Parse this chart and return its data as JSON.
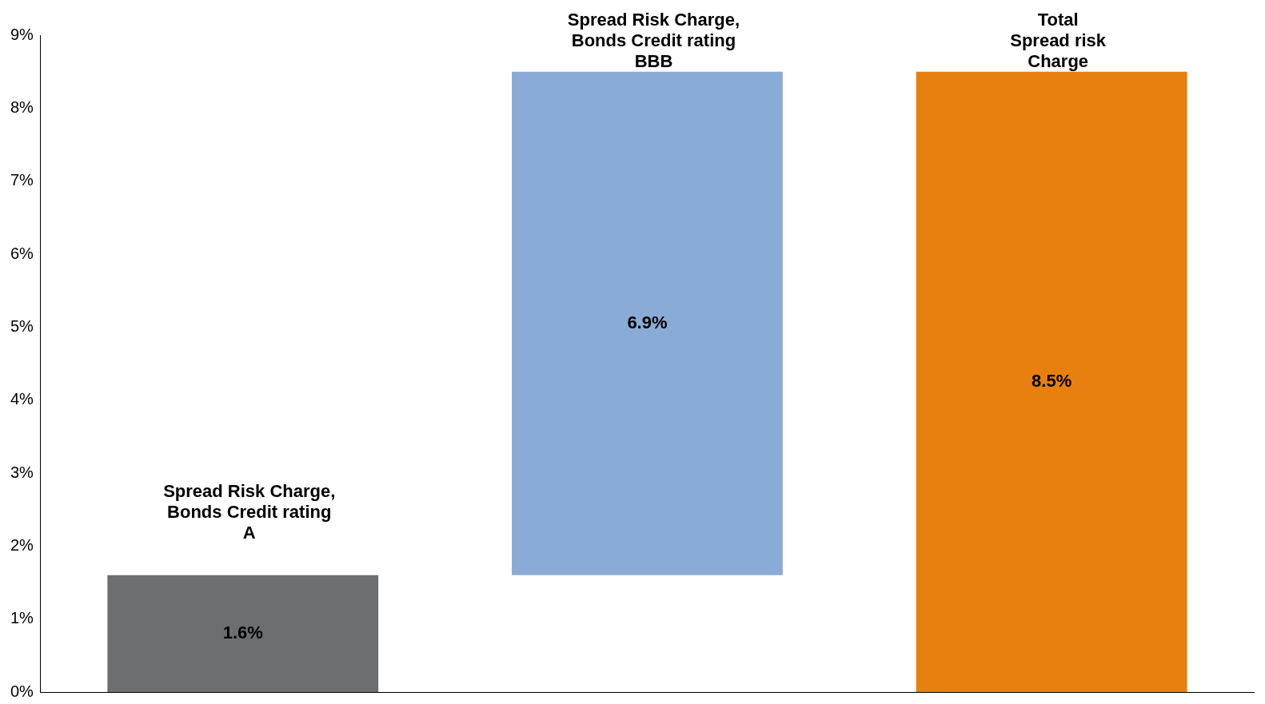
{
  "chart_data": {
    "type": "bar",
    "categories": [
      "Spread Risk Charge,\nBonds Credit rating\nA",
      "Spread Risk Charge,\nBonds Credit rating\nBBB",
      "Total\nSpread risk\nCharge"
    ],
    "values": [
      1.6,
      6.9,
      8.5
    ],
    "base": [
      0,
      1.6,
      0
    ],
    "colors": [
      "#6d6e70",
      "#8aabd5",
      "#e8800f"
    ],
    "value_labels": [
      "1.6%",
      "6.9%",
      "8.5%"
    ],
    "ylim": [
      0,
      9
    ],
    "yticks": [
      {
        "value": 0,
        "label": "0%"
      },
      {
        "value": 1,
        "label": "1%"
      },
      {
        "value": 2,
        "label": "2%"
      },
      {
        "value": 3,
        "label": "3%"
      },
      {
        "value": 4,
        "label": "4%"
      },
      {
        "value": 5,
        "label": "5%"
      },
      {
        "value": 6,
        "label": "6%"
      },
      {
        "value": 7,
        "label": "7%"
      },
      {
        "value": 8,
        "label": "8%"
      },
      {
        "value": 9,
        "label": "9%"
      }
    ],
    "tick_labels": "y",
    "grid": false,
    "legend": false
  }
}
